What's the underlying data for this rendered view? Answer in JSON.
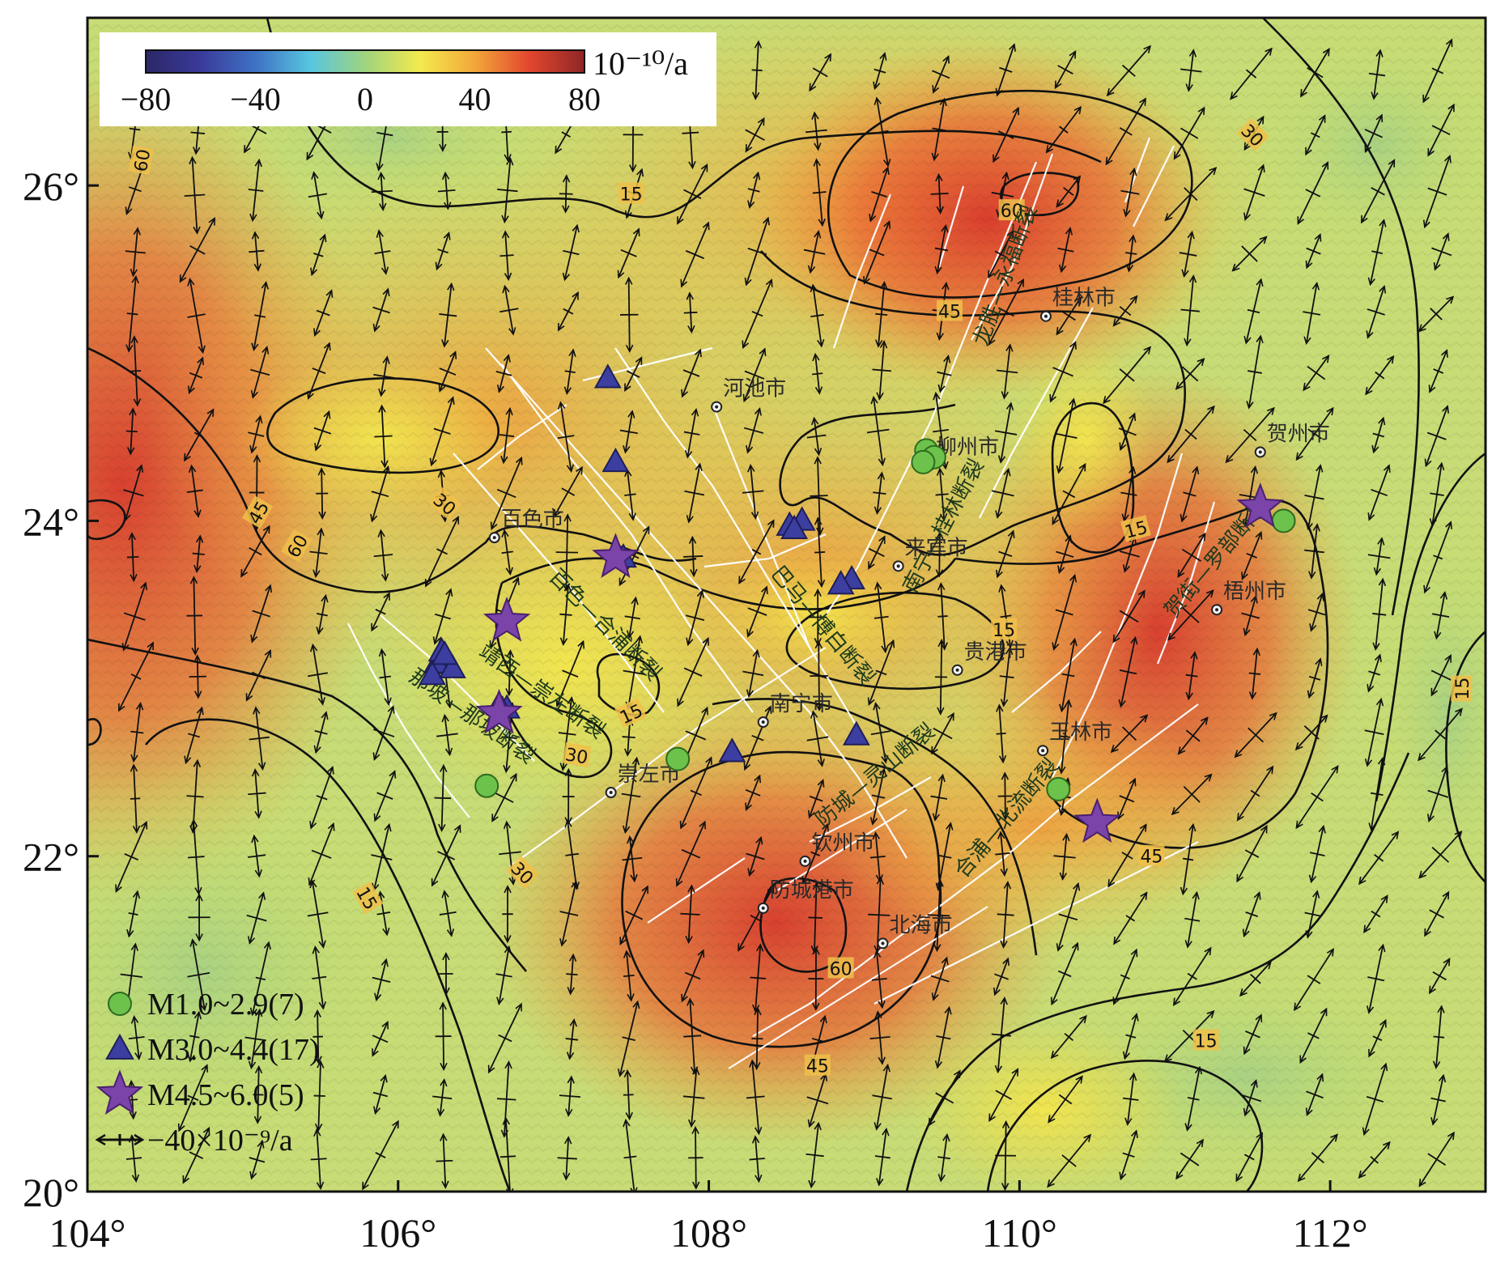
{
  "map": {
    "lon_range": [
      104,
      113
    ],
    "lat_range": [
      20,
      27
    ],
    "lon_ticks": [
      {
        "value": 104,
        "label": "104°"
      },
      {
        "value": 106,
        "label": "106°"
      },
      {
        "value": 108,
        "label": "108°"
      },
      {
        "value": 110,
        "label": "110°"
      },
      {
        "value": 112,
        "label": "112°"
      }
    ],
    "lat_ticks": [
      {
        "value": 20,
        "label": "20°"
      },
      {
        "value": 22,
        "label": "22°"
      },
      {
        "value": 24,
        "label": "24°"
      },
      {
        "value": 26,
        "label": "26°"
      }
    ]
  },
  "colorbar": {
    "unit": "10⁻¹⁰/a",
    "range": [
      -80,
      80
    ],
    "ticks": [
      {
        "value": -80,
        "label": "−80"
      },
      {
        "value": -40,
        "label": "−40"
      },
      {
        "value": 0,
        "label": "0"
      },
      {
        "value": 40,
        "label": "40"
      },
      {
        "value": 80,
        "label": "80"
      }
    ],
    "stops": [
      {
        "value": -80,
        "color": "#2b2766"
      },
      {
        "value": -60,
        "color": "#3a3a9a"
      },
      {
        "value": -40,
        "color": "#3e72c4"
      },
      {
        "value": -20,
        "color": "#58c6e0"
      },
      {
        "value": 0,
        "color": "#9fd47e"
      },
      {
        "value": 20,
        "color": "#f4ea4e"
      },
      {
        "value": 40,
        "color": "#f3a73a"
      },
      {
        "value": 60,
        "color": "#e2462f"
      },
      {
        "value": 80,
        "color": "#8e2626"
      }
    ]
  },
  "cities": [
    {
      "name": "桂林市",
      "lon": 110.17,
      "lat": 25.22
    },
    {
      "name": "河池市",
      "lon": 108.05,
      "lat": 24.68
    },
    {
      "name": "柳州市",
      "lon": 109.42,
      "lat": 24.33
    },
    {
      "name": "贺州市",
      "lon": 111.55,
      "lat": 24.41
    },
    {
      "name": "百色市",
      "lon": 106.62,
      "lat": 23.9
    },
    {
      "name": "来宾市",
      "lon": 109.22,
      "lat": 23.73
    },
    {
      "name": "梧州市",
      "lon": 111.27,
      "lat": 23.47
    },
    {
      "name": "贵港市",
      "lon": 109.6,
      "lat": 23.11
    },
    {
      "name": "南宁市",
      "lon": 108.35,
      "lat": 22.8
    },
    {
      "name": "玉林市",
      "lon": 110.15,
      "lat": 22.63
    },
    {
      "name": "崇左市",
      "lon": 107.37,
      "lat": 22.38
    },
    {
      "name": "钦州市",
      "lon": 108.62,
      "lat": 21.97
    },
    {
      "name": "防城港市",
      "lon": 108.35,
      "lat": 21.69
    },
    {
      "name": "北海市",
      "lon": 109.12,
      "lat": 21.48
    }
  ],
  "faults": [
    {
      "name": "龙胜—永福断裂",
      "lon": 109.95,
      "lat": 25.45,
      "angle": -70
    },
    {
      "name": "南宁—桂林断裂",
      "lon": 109.55,
      "lat": 23.95,
      "angle": -62
    },
    {
      "name": "巴马—博白断裂",
      "lon": 108.7,
      "lat": 23.35,
      "angle": 50
    },
    {
      "name": "百色—合浦断裂",
      "lon": 107.3,
      "lat": 23.35,
      "angle": 45
    },
    {
      "name": "靖西—崇左断裂",
      "lon": 106.9,
      "lat": 22.95,
      "angle": 35
    },
    {
      "name": "那坡—那坡断裂",
      "lon": 106.45,
      "lat": 22.8,
      "angle": 35
    },
    {
      "name": "防城—灵山断裂",
      "lon": 109.1,
      "lat": 22.45,
      "angle": -40
    },
    {
      "name": "合浦—北流断裂",
      "lon": 109.95,
      "lat": 22.2,
      "angle": -50
    },
    {
      "name": "贺街—罗部断裂",
      "lon": 111.3,
      "lat": 23.75,
      "angle": -50
    }
  ],
  "contour_labels": [
    {
      "text": "60",
      "lon": 104.35,
      "lat": 26.15,
      "angle": -80
    },
    {
      "text": "15",
      "lon": 107.5,
      "lat": 25.95,
      "angle": 0
    },
    {
      "text": "60",
      "lon": 109.95,
      "lat": 25.85,
      "angle": 0
    },
    {
      "text": "30",
      "lon": 111.5,
      "lat": 26.3,
      "angle": 45
    },
    {
      "text": "45",
      "lon": 109.55,
      "lat": 25.25,
      "angle": 0
    },
    {
      "text": "30",
      "lon": 106.3,
      "lat": 24.1,
      "angle": 40
    },
    {
      "text": "45",
      "lon": 105.1,
      "lat": 24.05,
      "angle": -60
    },
    {
      "text": "60",
      "lon": 105.35,
      "lat": 23.85,
      "angle": -60
    },
    {
      "text": "15",
      "lon": 110.75,
      "lat": 23.95,
      "angle": -15
    },
    {
      "text": "15",
      "lon": 109.9,
      "lat": 23.35,
      "angle": 0
    },
    {
      "text": "15",
      "lon": 107.5,
      "lat": 22.85,
      "angle": -25
    },
    {
      "text": "30",
      "lon": 107.15,
      "lat": 22.6,
      "angle": 10
    },
    {
      "text": "15",
      "lon": 112.85,
      "lat": 23.0,
      "angle": -90
    },
    {
      "text": "15",
      "lon": 113.2,
      "lat": 22.5,
      "angle": -90
    },
    {
      "text": "45",
      "lon": 110.85,
      "lat": 22.0,
      "angle": 0
    },
    {
      "text": "30",
      "lon": 106.8,
      "lat": 21.9,
      "angle": 45
    },
    {
      "text": "15",
      "lon": 105.8,
      "lat": 21.75,
      "angle": 60
    },
    {
      "text": "60",
      "lon": 108.85,
      "lat": 21.33,
      "angle": 0
    },
    {
      "text": "45",
      "lon": 108.7,
      "lat": 20.75,
      "angle": 0
    },
    {
      "text": "15",
      "lon": 111.2,
      "lat": 20.9,
      "angle": 0
    }
  ],
  "earthquakes": {
    "small": [
      {
        "lon": 109.4,
        "lat": 24.42
      },
      {
        "lon": 109.45,
        "lat": 24.38
      },
      {
        "lon": 111.7,
        "lat": 24.0
      },
      {
        "lon": 107.8,
        "lat": 22.58
      },
      {
        "lon": 106.57,
        "lat": 22.42
      },
      {
        "lon": 110.25,
        "lat": 22.4
      },
      {
        "lon": 109.38,
        "lat": 24.35
      }
    ],
    "medium": [
      {
        "lon": 107.35,
        "lat": 24.85
      },
      {
        "lon": 107.4,
        "lat": 24.35
      },
      {
        "lon": 108.52,
        "lat": 23.97
      },
      {
        "lon": 108.6,
        "lat": 24.0
      },
      {
        "lon": 108.92,
        "lat": 23.65
      },
      {
        "lon": 106.25,
        "lat": 23.15
      },
      {
        "lon": 106.28,
        "lat": 23.22
      },
      {
        "lon": 106.22,
        "lat": 23.08
      },
      {
        "lon": 106.35,
        "lat": 23.12
      },
      {
        "lon": 106.7,
        "lat": 22.88
      },
      {
        "lon": 108.15,
        "lat": 22.62
      },
      {
        "lon": 108.95,
        "lat": 22.72
      },
      {
        "lon": 107.45,
        "lat": 23.78
      },
      {
        "lon": 108.55,
        "lat": 23.95
      },
      {
        "lon": 106.3,
        "lat": 23.2
      },
      {
        "lon": 108.85,
        "lat": 23.62
      },
      {
        "lon": 106.65,
        "lat": 22.9
      }
    ],
    "large": [
      {
        "lon": 107.4,
        "lat": 23.78
      },
      {
        "lon": 106.7,
        "lat": 23.4
      },
      {
        "lon": 106.65,
        "lat": 22.85
      },
      {
        "lon": 111.55,
        "lat": 24.08
      },
      {
        "lon": 110.5,
        "lat": 22.2
      }
    ]
  },
  "legend": {
    "items": [
      {
        "symbol": "circle",
        "label": "M1.0~2.9(7)",
        "color": "#6cc24a"
      },
      {
        "symbol": "triangle",
        "label": "M3.0~4.4(17)",
        "color": "#3c3fa0"
      },
      {
        "symbol": "star",
        "label": "M4.5~6.0(5)",
        "color": "#7a44a8"
      },
      {
        "symbol": "strain-cross",
        "label": "−40×10⁻⁹/a",
        "color": "#111111"
      }
    ]
  }
}
